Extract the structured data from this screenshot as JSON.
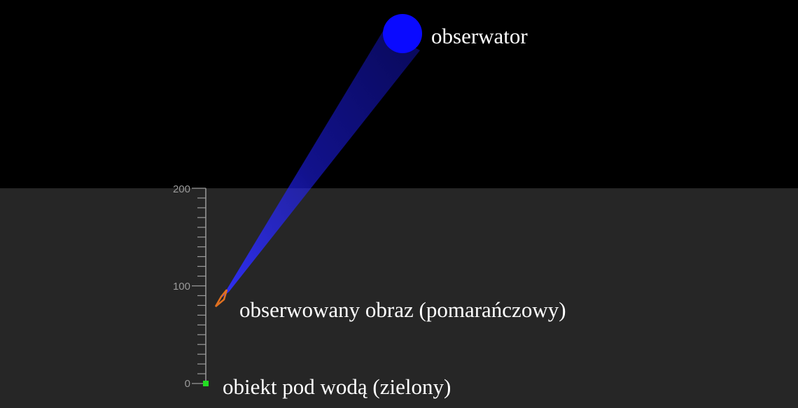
{
  "scene": {
    "colors": {
      "air": "#000000",
      "water": "#262626",
      "observer": "#0a0aff",
      "sight_beam": "#1a1aff",
      "image": "#e07020",
      "object": "#22dd22",
      "ruler": "#9a9a9a",
      "label": "#ffffff"
    },
    "labels": {
      "observer": "obserwator",
      "image": "obserwowany obraz (pomarańczowy)",
      "object": "obiekt pod wodą (zielony)"
    },
    "ruler": {
      "min": 0,
      "max": 200,
      "major_step": 100,
      "minor_step": 10,
      "tick_labels": [
        "0",
        "100",
        "200"
      ]
    },
    "image_depth_reading": 80,
    "object_depth_reading": 0
  }
}
